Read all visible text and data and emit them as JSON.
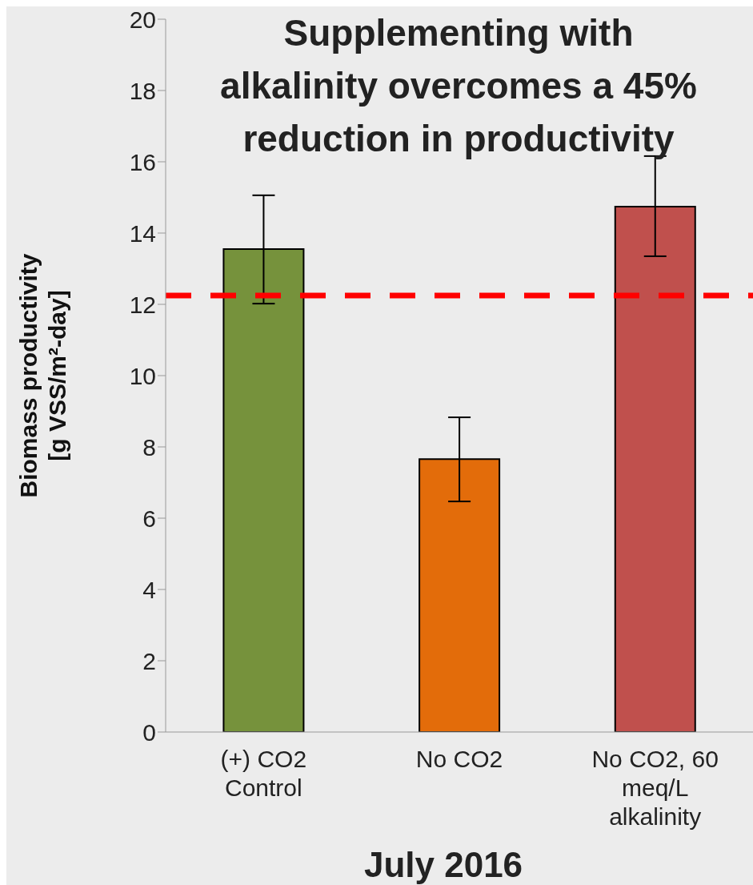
{
  "chart_data": {
    "type": "bar",
    "title": "Supplementing with alkalinity overcomes a 45% reduction in productivity",
    "ylabel": "Biomass productivity\n[g VSS/m²-day]",
    "xlabel": "July 2016",
    "categories": [
      "(+) CO2 Control",
      "No CO2",
      "No CO2, 60 meq/L alkalinity"
    ],
    "values": [
      13.55,
      7.66,
      14.74
    ],
    "colors": [
      "#76923c",
      "#e36c0a",
      "#c0504d"
    ],
    "errors": [
      [
        12.02,
        15.06
      ],
      [
        6.47,
        8.83
      ],
      [
        13.35,
        16.16
      ]
    ],
    "ylim": [
      0,
      20
    ],
    "yticks": [
      0,
      2,
      4,
      6,
      8,
      10,
      12,
      14,
      16,
      18,
      20
    ],
    "ref_lines": [
      {
        "axis": "y",
        "value": 12.25,
        "color": "#ff0000",
        "line_style": "dashed"
      }
    ],
    "grid": false
  }
}
